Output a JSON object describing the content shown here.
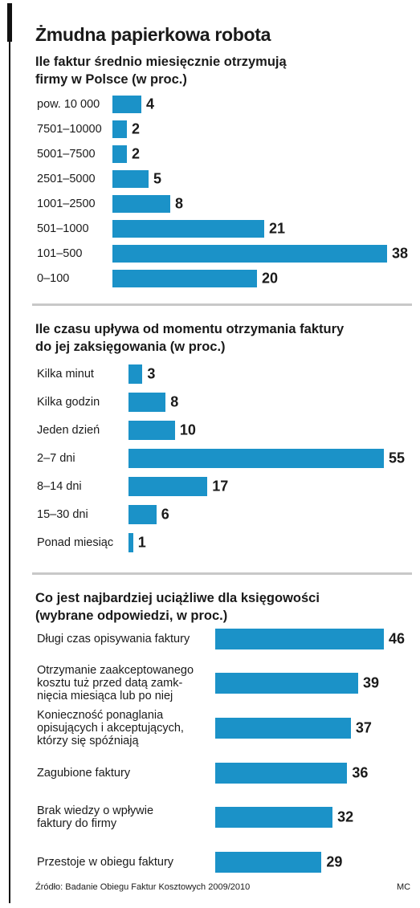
{
  "title": "Żmudna papierkowa robota",
  "source": "Źródło: Badanie Obiegu Faktur Kosztowych 2009/2010",
  "credit": "MC",
  "chart_data": [
    {
      "type": "bar",
      "orientation": "horizontal",
      "color": "#1b92c8",
      "title": "Ile faktur średnio miesięcznie otrzymują\nfirmy w Polsce (w proc.)",
      "categories": [
        "pow. 10 000",
        "7501–10000",
        "5001–7500",
        "2501–5000",
        "1001–2500",
        "501–1000",
        "101–500",
        "0–100"
      ],
      "values": [
        4,
        2,
        2,
        5,
        8,
        21,
        38,
        20
      ]
    },
    {
      "type": "bar",
      "orientation": "horizontal",
      "color": "#1b92c8",
      "title": "Ile czasu upływa od momentu otrzymania faktury\ndo jej zaksięgowania (w proc.)",
      "categories": [
        "Kilka minut",
        "Kilka godzin",
        "Jeden dzień",
        "2–7 dni",
        "8–14 dni",
        "15–30 dni",
        "Ponad miesiąc"
      ],
      "values": [
        3,
        8,
        10,
        55,
        17,
        6,
        1
      ]
    },
    {
      "type": "bar",
      "orientation": "horizontal",
      "color": "#1b92c8",
      "title": "Co jest najbardziej uciążliwe dla księgowości\n(wybrane odpowiedzi, w proc.)",
      "categories": [
        "Długi czas opisywania faktury",
        "Otrzymanie zaakceptowanego\nkosztu tuż przed datą zamk-\nnięcia miesiąca lub po niej",
        "Konieczność ponaglania\nopisujących i akceptujących,\nktórzy się spóźniają",
        "Zagubione faktury",
        "Brak wiedzy o wpływie\nfaktury do firmy",
        "Przestoje w obiegu faktury"
      ],
      "values": [
        46,
        39,
        37,
        36,
        32,
        29
      ]
    }
  ]
}
